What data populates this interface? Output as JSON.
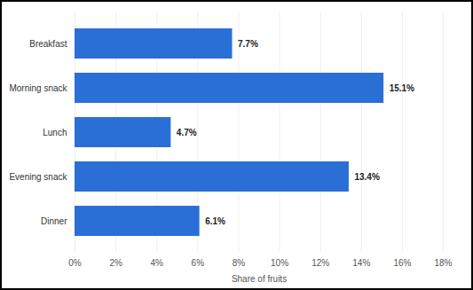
{
  "chart_data": {
    "type": "bar",
    "orientation": "horizontal",
    "categories": [
      "Breakfast",
      "Morning snack",
      "Lunch",
      "Evening snack",
      "Dinner"
    ],
    "values": [
      7.7,
      15.1,
      4.7,
      13.4,
      6.1
    ],
    "value_labels": [
      "7.7%",
      "15.1%",
      "4.7%",
      "13.4%",
      "6.1%"
    ],
    "data_labels": true,
    "color": "#2a6fd6",
    "xlabel": "Share of fruits",
    "xlim": [
      0,
      18
    ],
    "xticks": [
      {
        "value": 0,
        "label": "0%"
      },
      {
        "value": 2,
        "label": "2%"
      },
      {
        "value": 4,
        "label": "4%"
      },
      {
        "value": 6,
        "label": "6%"
      },
      {
        "value": 8,
        "label": "8%"
      },
      {
        "value": 10,
        "label": "10%"
      },
      {
        "value": 12,
        "label": "12%"
      },
      {
        "value": 14,
        "label": "14%"
      },
      {
        "value": 16,
        "label": "16%"
      },
      {
        "value": 18,
        "label": "18%"
      }
    ],
    "grid": true
  }
}
